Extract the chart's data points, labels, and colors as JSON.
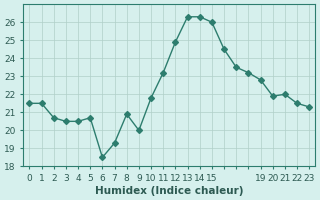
{
  "x": [
    0,
    1,
    2,
    3,
    4,
    5,
    6,
    7,
    8,
    9,
    10,
    11,
    12,
    13,
    14,
    15,
    16,
    17,
    18,
    19,
    20,
    21,
    22,
    23
  ],
  "y": [
    21.5,
    21.5,
    20.7,
    20.5,
    20.5,
    20.7,
    18.5,
    19.3,
    20.9,
    20.0,
    21.8,
    23.2,
    24.9,
    26.3,
    26.3,
    26.0,
    24.5,
    23.5,
    23.2,
    22.8,
    21.9,
    22.0,
    21.5,
    21.3
  ],
  "line_color": "#2d7d6e",
  "marker": "D",
  "marker_size": 3,
  "bg_color": "#d6f0ed",
  "grid_color": "#b0cfc9",
  "xlabel": "Humidex (Indice chaleur)",
  "xlim": [
    -0.5,
    23.5
  ],
  "ylim": [
    18,
    27
  ],
  "yticks": [
    18,
    19,
    20,
    21,
    22,
    23,
    24,
    25,
    26
  ],
  "xtick_labels": [
    "0",
    "1",
    "2",
    "3",
    "4",
    "5",
    "6",
    "7",
    "8",
    "9",
    "10",
    "11",
    "12",
    "13",
    "14",
    "15",
    "",
    "",
    "",
    "19",
    "20",
    "21",
    "22",
    "23"
  ],
  "title_fontsize": 7,
  "label_fontsize": 7.5,
  "tick_fontsize": 6.5,
  "tick_color": "#2d5a52",
  "spine_color": "#2d7d6e"
}
